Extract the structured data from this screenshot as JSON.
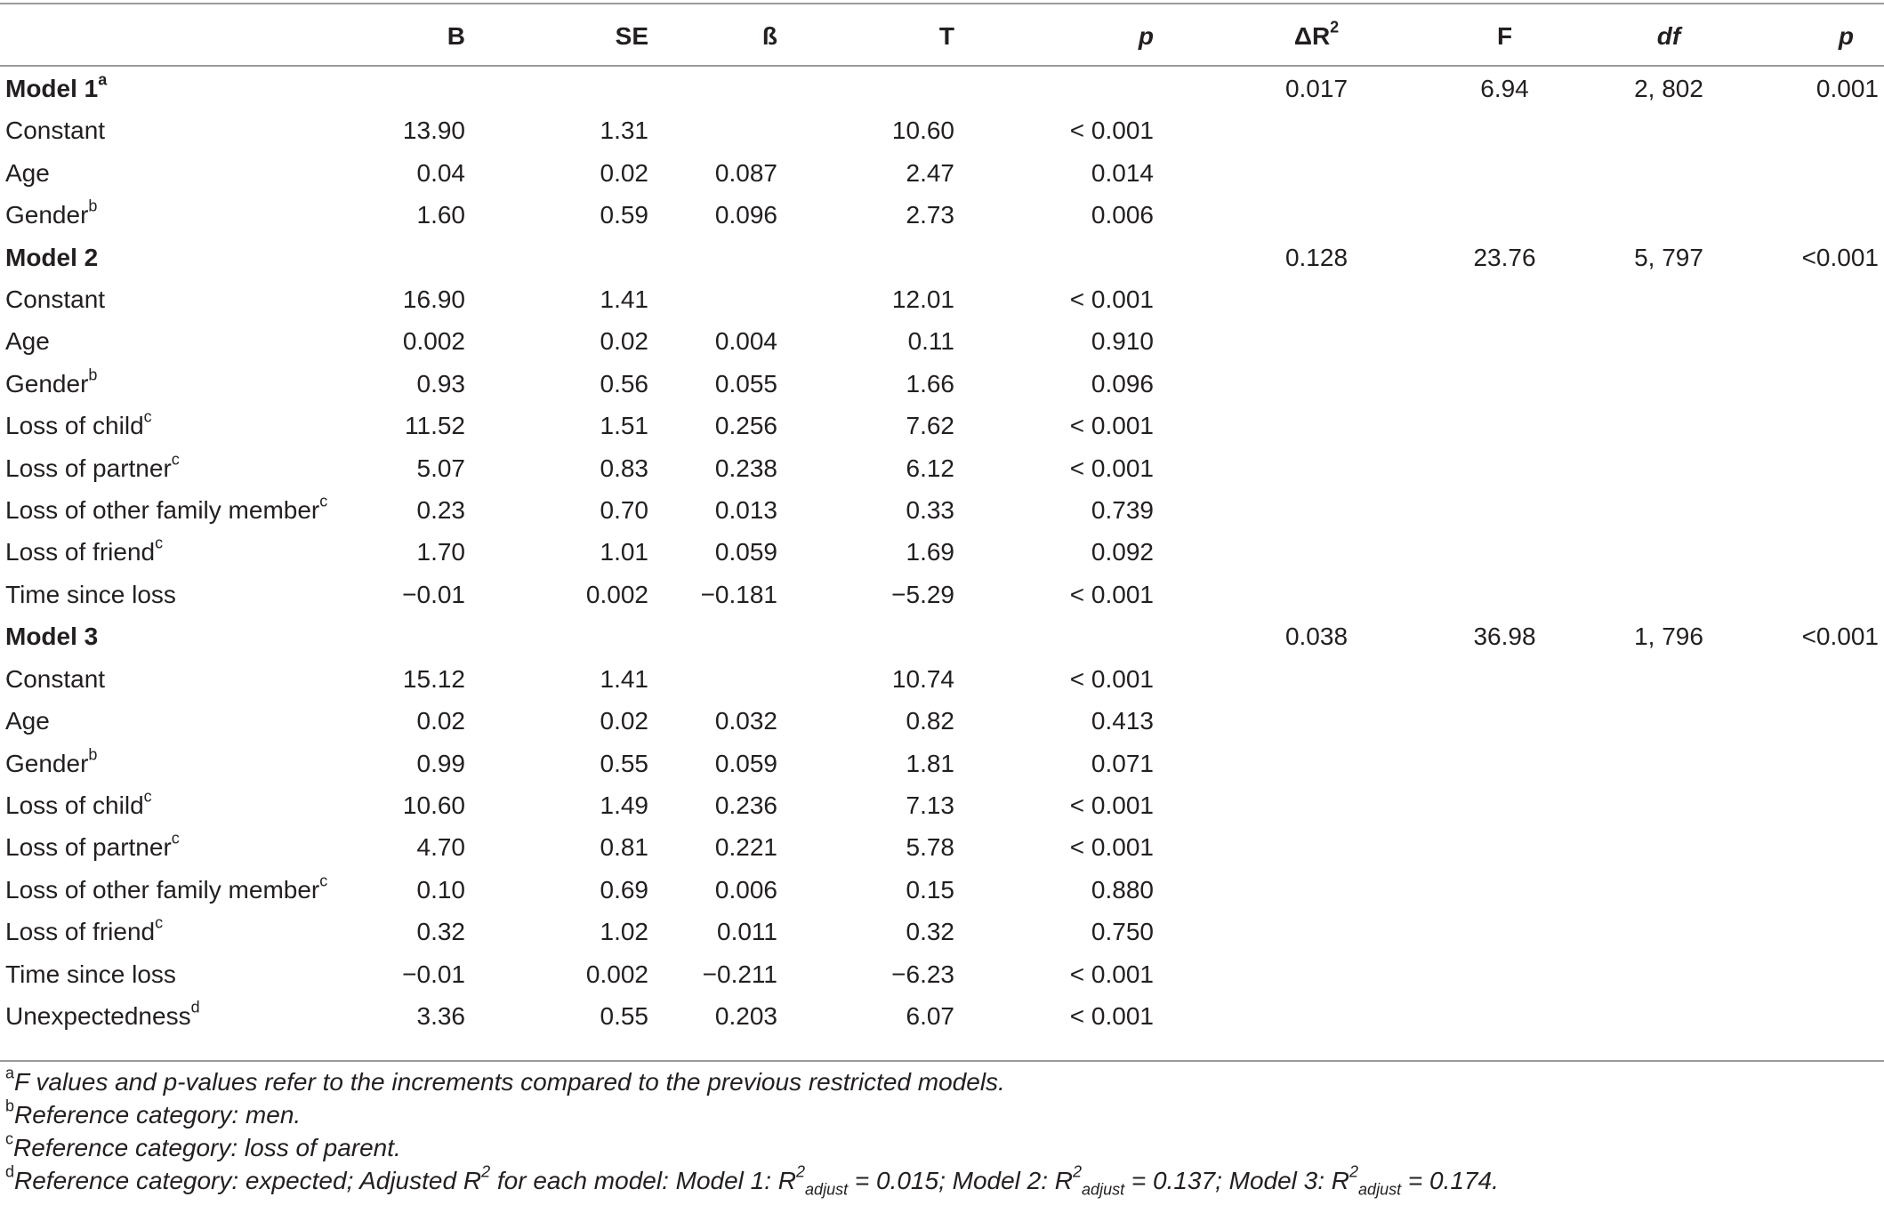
{
  "columns": {
    "label": "",
    "b": "B",
    "se": "SE",
    "beta": "ß",
    "t": "T",
    "p": "p",
    "delta_r2": "ΔR",
    "delta_r2_sup": "2",
    "f": "F",
    "df": "df",
    "p2": "p"
  },
  "models": [
    {
      "name": "Model 1",
      "name_sup": "a",
      "delta_r2": "0.017",
      "f": "6.94",
      "df": "2, 802",
      "p": "0.001",
      "rows": [
        {
          "label": "Constant",
          "sup": "",
          "b": "13.90",
          "se": "1.31",
          "beta": "",
          "t": "10.60",
          "p": "< 0.001"
        },
        {
          "label": "Age",
          "sup": "",
          "b": "0.04",
          "se": "0.02",
          "beta": "0.087",
          "t": "2.47",
          "p": "0.014"
        },
        {
          "label": "Gender",
          "sup": "b",
          "b": "1.60",
          "se": "0.59",
          "beta": "0.096",
          "t": "2.73",
          "p": "0.006"
        }
      ]
    },
    {
      "name": "Model 2",
      "name_sup": "",
      "delta_r2": "0.128",
      "f": "23.76",
      "df": "5, 797",
      "p": "<0.001",
      "rows": [
        {
          "label": "Constant",
          "sup": "",
          "b": "16.90",
          "se": "1.41",
          "beta": "",
          "t": "12.01",
          "p": "< 0.001"
        },
        {
          "label": "Age",
          "sup": "",
          "b": "0.002",
          "se": "0.02",
          "beta": "0.004",
          "t": "0.11",
          "p": "0.910"
        },
        {
          "label": "Gender",
          "sup": "b",
          "b": "0.93",
          "se": "0.56",
          "beta": "0.055",
          "t": "1.66",
          "p": "0.096"
        },
        {
          "label": "Loss of child",
          "sup": "c",
          "b": "11.52",
          "se": "1.51",
          "beta": "0.256",
          "t": "7.62",
          "p": "< 0.001"
        },
        {
          "label": "Loss of partner",
          "sup": "c",
          "b": "5.07",
          "se": "0.83",
          "beta": "0.238",
          "t": "6.12",
          "p": "< 0.001"
        },
        {
          "label": "Loss of other family member",
          "sup": "c",
          "b": "0.23",
          "se": "0.70",
          "beta": "0.013",
          "t": "0.33",
          "p": "0.739"
        },
        {
          "label": "Loss of friend",
          "sup": "c",
          "b": "1.70",
          "se": "1.01",
          "beta": "0.059",
          "t": "1.69",
          "p": "0.092"
        },
        {
          "label": "Time since loss",
          "sup": "",
          "b": "−0.01",
          "se": "0.002",
          "beta": "−0.181",
          "t": "−5.29",
          "p": "< 0.001"
        }
      ]
    },
    {
      "name": "Model 3",
      "name_sup": "",
      "delta_r2": "0.038",
      "f": "36.98",
      "df": "1, 796",
      "p": "<0.001",
      "rows": [
        {
          "label": "Constant",
          "sup": "",
          "b": "15.12",
          "se": "1.41",
          "beta": "",
          "t": "10.74",
          "p": "< 0.001"
        },
        {
          "label": "Age",
          "sup": "",
          "b": "0.02",
          "se": "0.02",
          "beta": "0.032",
          "t": "0.82",
          "p": "0.413"
        },
        {
          "label": "Gender",
          "sup": "b",
          "b": "0.99",
          "se": "0.55",
          "beta": "0.059",
          "t": "1.81",
          "p": "0.071"
        },
        {
          "label": "Loss of child",
          "sup": "c",
          "b": "10.60",
          "se": "1.49",
          "beta": "0.236",
          "t": "7.13",
          "p": "< 0.001"
        },
        {
          "label": "Loss of partner",
          "sup": "c",
          "b": "4.70",
          "se": "0.81",
          "beta": "0.221",
          "t": "5.78",
          "p": "< 0.001"
        },
        {
          "label": "Loss of other family member",
          "sup": "c",
          "b": "0.10",
          "se": "0.69",
          "beta": "0.006",
          "t": "0.15",
          "p": "0.880"
        },
        {
          "label": "Loss of friend",
          "sup": "c",
          "b": "0.32",
          "se": "1.02",
          "beta": "0.011",
          "t": "0.32",
          "p": "0.750"
        },
        {
          "label": "Time since loss",
          "sup": "",
          "b": "−0.01",
          "se": "0.002",
          "beta": "−0.211",
          "t": "−6.23",
          "p": "< 0.001"
        },
        {
          "label": "Unexpectedness",
          "sup": "d",
          "b": "3.36",
          "se": "0.55",
          "beta": "0.203",
          "t": "6.07",
          "p": "< 0.001"
        }
      ]
    }
  ],
  "footnotes": {
    "a": {
      "mark": "a",
      "text": "F values and p-values refer to the increments compared to the previous restricted models."
    },
    "b": {
      "mark": "b",
      "text": "Reference category: men."
    },
    "c": {
      "mark": "c",
      "text": "Reference category: loss of parent."
    },
    "d": {
      "mark": "d",
      "part1": "Reference category: expected; Adjusted R",
      "sup1": "2",
      "part2": " for each model: Model 1: R",
      "sup2": "2",
      "sub2": "adjust",
      "part3": " = 0.015; Model 2: R",
      "sup3": "2",
      "sub3": "adjust",
      "part4": " = 0.137; Model 3: R",
      "sup4": "2",
      "sub4": "adjust",
      "part5": " = 0.174."
    }
  }
}
